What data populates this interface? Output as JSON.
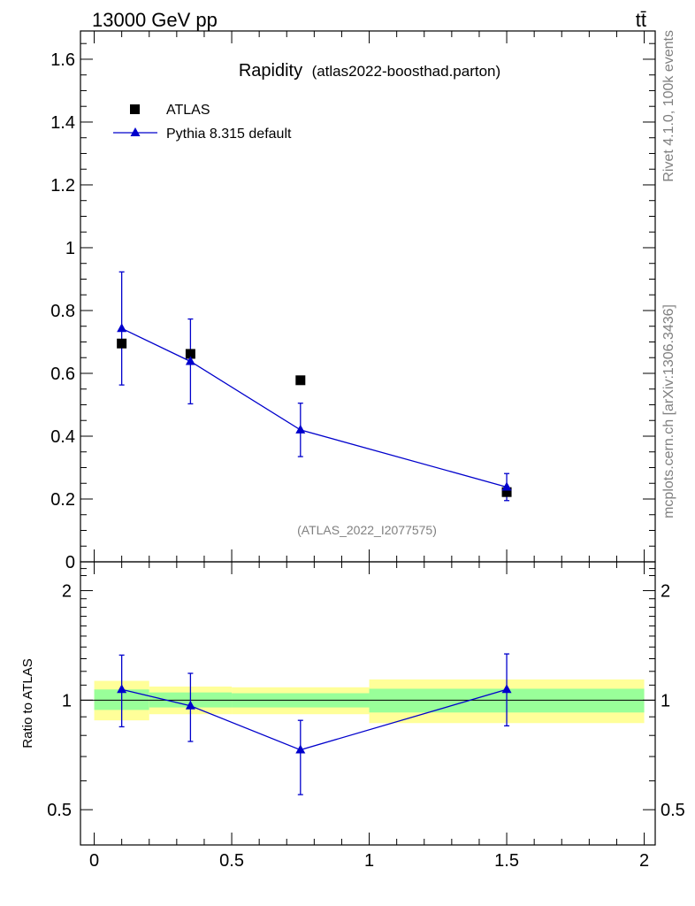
{
  "header": {
    "energy_label": "13000 GeV pp",
    "process_label": "tt̄"
  },
  "side_labels": {
    "rivet": "Rivet 4.1.0,  100k events",
    "site": "mcplots.cern.ch [arXiv:1306.3436]"
  },
  "title": {
    "main": "Rapidity",
    "sub": "(atlas2022-boosthad.parton)"
  },
  "analysis_id": "(ATLAS_2022_I2077575)",
  "legend": {
    "data_label": "ATLAS",
    "mc_label": "Pythia 8.315 default"
  },
  "colors": {
    "data": "#000000",
    "mc": "#0000cc",
    "band_inner": "#99ff99",
    "band_outer": "#ffff99"
  },
  "chart_data": [
    {
      "type": "scatter",
      "panel": "main",
      "title": "Rapidity (atlas2022-boosthad.parton)",
      "xlim": [
        -0.05,
        2.04
      ],
      "ylim": [
        0,
        1.69
      ],
      "yticks": [
        0,
        0.2,
        0.4,
        0.6,
        0.8,
        1,
        1.2,
        1.4,
        1.6
      ],
      "ytick_labels": [
        "0",
        "0.2",
        "0.4",
        "0.6",
        "0.8",
        "1",
        "1.2",
        "1.4",
        "1.6"
      ],
      "series": [
        {
          "name": "ATLAS",
          "marker": "square",
          "x": [
            0.1,
            0.35,
            0.75,
            1.5
          ],
          "y": [
            0.695,
            0.662,
            0.578,
            0.222
          ]
        },
        {
          "name": "Pythia 8.315 default",
          "marker": "triangle",
          "line": true,
          "x": [
            0.1,
            0.35,
            0.75,
            1.5
          ],
          "y": [
            0.743,
            0.638,
            0.42,
            0.238
          ],
          "yerr": [
            0.18,
            0.135,
            0.085,
            0.043
          ]
        }
      ]
    },
    {
      "type": "scatter",
      "panel": "ratio",
      "ylabel": "Ratio to ATLAS",
      "yscale": "log",
      "xlim": [
        -0.05,
        2.04
      ],
      "ylim": [
        0.4,
        2.4
      ],
      "xticks": [
        0,
        0.5,
        1,
        1.5,
        2
      ],
      "xtick_labels": [
        "0",
        "0.5",
        "1",
        "1.5",
        "2"
      ],
      "yticks": [
        0.5,
        1,
        2
      ],
      "ytick_labels": [
        "0.5",
        "1",
        "2"
      ],
      "bands": {
        "bins": [
          [
            0,
            0.2
          ],
          [
            0.2,
            0.5
          ],
          [
            0.5,
            1.0
          ],
          [
            1.0,
            2.0
          ]
        ],
        "inner": [
          [
            0.94,
            1.07
          ],
          [
            0.955,
            1.05
          ],
          [
            0.955,
            1.045
          ],
          [
            0.925,
            1.075
          ]
        ],
        "outer": [
          [
            0.88,
            1.13
          ],
          [
            0.915,
            1.09
          ],
          [
            0.915,
            1.085
          ],
          [
            0.865,
            1.14
          ]
        ]
      },
      "series": [
        {
          "name": "Pythia 8.315 default",
          "x": [
            0.1,
            0.35,
            0.75,
            1.5
          ],
          "y": [
            1.07,
            0.965,
            0.73,
            1.07
          ],
          "yerr_low": [
            0.225,
            0.195,
            0.18,
            0.22
          ],
          "yerr_high": [
            0.26,
            0.22,
            0.15,
            0.27
          ]
        }
      ]
    }
  ]
}
